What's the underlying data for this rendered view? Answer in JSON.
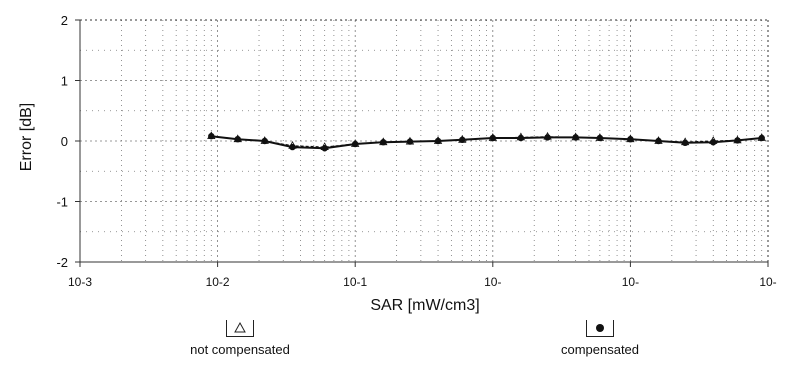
{
  "chart_data": {
    "type": "line",
    "title": "",
    "xlabel": "SAR [mW/cm3]",
    "ylabel": "Error [dB]",
    "xscale": "log",
    "xlim": [
      0.001,
      100
    ],
    "ylim": [
      -2,
      2
    ],
    "x_tick_labels": [
      "10-3",
      "10-2",
      "10-1",
      "10-",
      "10-",
      "10-",
      "10-"
    ],
    "y_tick_labels": [
      "2",
      "1",
      "0",
      "-1",
      "-2"
    ],
    "y_ticks": [
      2,
      1,
      0,
      -1,
      -2
    ],
    "grid": true,
    "series": [
      {
        "name": "not compensated",
        "marker": "triangle-open",
        "x": [
          0.009,
          0.014,
          0.022,
          0.035,
          0.06,
          0.1,
          0.16,
          0.25,
          0.4,
          0.6,
          1.0,
          1.6,
          2.5,
          4.0,
          6.0,
          10,
          16,
          25,
          40,
          60,
          90
        ],
        "y": [
          0.08,
          0.03,
          0.0,
          -0.08,
          -0.1,
          -0.05,
          -0.02,
          -0.01,
          0.0,
          0.02,
          0.05,
          0.06,
          0.07,
          0.06,
          0.05,
          0.03,
          0.0,
          -0.02,
          0.0,
          0.01,
          0.05
        ]
      },
      {
        "name": "compensated",
        "marker": "circle-filled",
        "x": [
          0.009,
          0.014,
          0.022,
          0.035,
          0.06,
          0.1,
          0.16,
          0.25,
          0.4,
          0.6,
          1.0,
          1.6,
          2.5,
          4.0,
          6.0,
          10,
          16,
          25,
          40,
          60,
          90
        ],
        "y": [
          0.08,
          0.03,
          0.0,
          -0.1,
          -0.12,
          -0.05,
          -0.02,
          -0.01,
          0.0,
          0.02,
          0.05,
          0.05,
          0.06,
          0.06,
          0.05,
          0.03,
          0.0,
          -0.03,
          -0.02,
          0.01,
          0.05
        ]
      }
    ],
    "legend_position": "bottom"
  },
  "colors": {
    "line": "#111111",
    "grid": "#777777",
    "background": "#ffffff"
  }
}
